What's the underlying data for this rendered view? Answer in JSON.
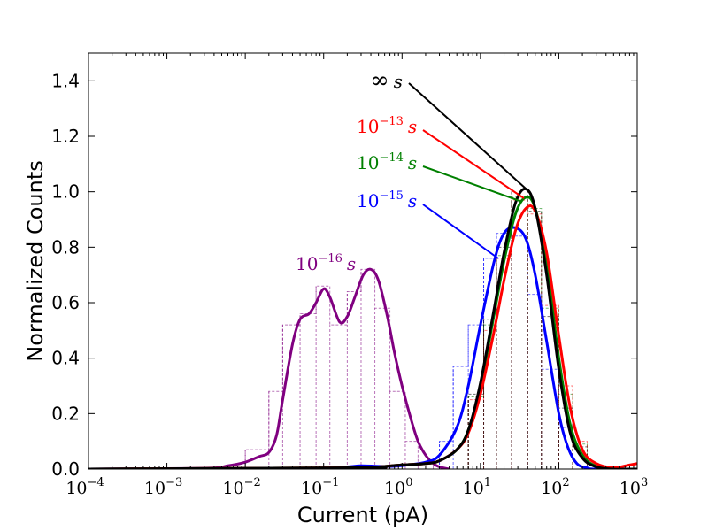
{
  "chart_data": {
    "type": "line",
    "title": "",
    "xlabel": "Current (pA)",
    "ylabel": "Normalized Counts",
    "xscale": "log",
    "xlim": [
      0.0001,
      1000
    ],
    "ylim": [
      0.0,
      1.5
    ],
    "x_ticks": [
      {
        "value": 0.0001,
        "base": "10",
        "exp": "−4"
      },
      {
        "value": 0.001,
        "base": "10",
        "exp": "−3"
      },
      {
        "value": 0.01,
        "base": "10",
        "exp": "−2"
      },
      {
        "value": 0.1,
        "base": "10",
        "exp": "−1"
      },
      {
        "value": 1,
        "base": "10",
        "exp": "0"
      },
      {
        "value": 10,
        "base": "10",
        "exp": "1"
      },
      {
        "value": 100,
        "base": "10",
        "exp": "2"
      },
      {
        "value": 1000,
        "base": "10",
        "exp": "3"
      }
    ],
    "y_ticks": [
      {
        "value": 0.0,
        "label": "0.0"
      },
      {
        "value": 0.2,
        "label": "0.2"
      },
      {
        "value": 0.4,
        "label": "0.4"
      },
      {
        "value": 0.6,
        "label": "0.6"
      },
      {
        "value": 0.8,
        "label": "0.8"
      },
      {
        "value": 1.0,
        "label": "1.0"
      },
      {
        "value": 1.2,
        "label": "1.2"
      },
      {
        "value": 1.4,
        "label": "1.4"
      }
    ],
    "series": [
      {
        "name": "10^-16 s",
        "color": "#800080",
        "annotation": {
          "prefix": "10",
          "exp": "−16",
          "unit": "s"
        },
        "curve": [
          [
            0.0001,
            0.0
          ],
          [
            0.003,
            0.003
          ],
          [
            0.006,
            0.012
          ],
          [
            0.01,
            0.025
          ],
          [
            0.015,
            0.045
          ],
          [
            0.02,
            0.06
          ],
          [
            0.025,
            0.12
          ],
          [
            0.03,
            0.25
          ],
          [
            0.04,
            0.45
          ],
          [
            0.05,
            0.54
          ],
          [
            0.065,
            0.56
          ],
          [
            0.08,
            0.6
          ],
          [
            0.1,
            0.65
          ],
          [
            0.12,
            0.62
          ],
          [
            0.16,
            0.53
          ],
          [
            0.2,
            0.55
          ],
          [
            0.25,
            0.62
          ],
          [
            0.32,
            0.7
          ],
          [
            0.4,
            0.72
          ],
          [
            0.5,
            0.68
          ],
          [
            0.65,
            0.55
          ],
          [
            0.8,
            0.42
          ],
          [
            1.0,
            0.3
          ],
          [
            1.3,
            0.18
          ],
          [
            1.6,
            0.1
          ],
          [
            2.0,
            0.05
          ],
          [
            2.5,
            0.02
          ],
          [
            3.0,
            0.008
          ],
          [
            4.0,
            0.0
          ]
        ],
        "histogram": [
          [
            0.0001,
            0.01,
            0.0
          ],
          [
            0.01,
            0.02,
            0.07
          ],
          [
            0.02,
            0.03,
            0.28
          ],
          [
            0.03,
            0.05,
            0.52
          ],
          [
            0.05,
            0.08,
            0.56
          ],
          [
            0.08,
            0.12,
            0.66
          ],
          [
            0.12,
            0.2,
            0.52
          ],
          [
            0.2,
            0.3,
            0.64
          ],
          [
            0.3,
            0.45,
            0.72
          ],
          [
            0.45,
            0.7,
            0.58
          ],
          [
            0.7,
            1.1,
            0.28
          ],
          [
            1.1,
            1.6,
            0.1
          ],
          [
            1.6,
            2.5,
            0.02
          ],
          [
            2.5,
            1000,
            0.0
          ]
        ]
      },
      {
        "name": "10^-15 s",
        "color": "#0000ff",
        "annotation": {
          "prefix": "10",
          "exp": "−15",
          "unit": "s"
        },
        "curve": [
          [
            0.0001,
            0.0
          ],
          [
            0.1,
            0.003
          ],
          [
            0.2,
            0.008
          ],
          [
            0.3,
            0.012
          ],
          [
            0.5,
            0.01
          ],
          [
            0.8,
            0.01
          ],
          [
            1.2,
            0.015
          ],
          [
            2.0,
            0.025
          ],
          [
            3.0,
            0.05
          ],
          [
            5.0,
            0.15
          ],
          [
            7.0,
            0.3
          ],
          [
            10.0,
            0.52
          ],
          [
            15.0,
            0.75
          ],
          [
            20.0,
            0.85
          ],
          [
            28.0,
            0.87
          ],
          [
            38.0,
            0.83
          ],
          [
            50.0,
            0.7
          ],
          [
            70.0,
            0.46
          ],
          [
            100.0,
            0.2
          ],
          [
            130.0,
            0.08
          ],
          [
            170.0,
            0.02
          ],
          [
            230.0,
            0.004
          ],
          [
            300.0,
            0.0
          ],
          [
            1000,
            0.0
          ]
        ],
        "histogram": [
          [
            3.0,
            4.5,
            0.1
          ],
          [
            4.5,
            7.0,
            0.37
          ],
          [
            7.0,
            11.0,
            0.52
          ],
          [
            11.0,
            16.0,
            0.76
          ],
          [
            16.0,
            25.0,
            0.85
          ],
          [
            25.0,
            40.0,
            0.84
          ],
          [
            40.0,
            60.0,
            0.63
          ],
          [
            60.0,
            100.0,
            0.36
          ],
          [
            100.0,
            150.0,
            0.15
          ],
          [
            150.0,
            230.0,
            0.04
          ]
        ]
      },
      {
        "name": "10^-14 s",
        "color": "#008000",
        "annotation": {
          "prefix": "10",
          "exp": "−14",
          "unit": "s"
        },
        "curve": [
          [
            0.0001,
            0.0
          ],
          [
            0.3,
            0.005
          ],
          [
            0.5,
            0.008
          ],
          [
            1.0,
            0.015
          ],
          [
            2.0,
            0.02
          ],
          [
            3.0,
            0.03
          ],
          [
            5.0,
            0.07
          ],
          [
            7.0,
            0.14
          ],
          [
            10.0,
            0.3
          ],
          [
            15.0,
            0.56
          ],
          [
            20.0,
            0.75
          ],
          [
            28.0,
            0.92
          ],
          [
            38.0,
            0.98
          ],
          [
            50.0,
            0.94
          ],
          [
            70.0,
            0.74
          ],
          [
            100.0,
            0.4
          ],
          [
            140.0,
            0.16
          ],
          [
            200.0,
            0.05
          ],
          [
            300.0,
            0.01
          ],
          [
            500.0,
            0.0
          ],
          [
            1000,
            0.0
          ]
        ],
        "histogram": [
          [
            7.0,
            11.0,
            0.26
          ],
          [
            11.0,
            16.0,
            0.52
          ],
          [
            16.0,
            25.0,
            0.77
          ],
          [
            25.0,
            40.0,
            0.98
          ],
          [
            40.0,
            60.0,
            0.94
          ],
          [
            60.0,
            100.0,
            0.58
          ],
          [
            100.0,
            150.0,
            0.27
          ],
          [
            150.0,
            230.0,
            0.09
          ]
        ]
      },
      {
        "name": "10^-13 s",
        "color": "#ff0000",
        "annotation": {
          "prefix": "10",
          "exp": "−13",
          "unit": "s"
        },
        "curve": [
          [
            0.0001,
            0.0
          ],
          [
            0.3,
            0.005
          ],
          [
            0.5,
            0.008
          ],
          [
            1.0,
            0.015
          ],
          [
            2.0,
            0.02
          ],
          [
            3.0,
            0.03
          ],
          [
            5.0,
            0.07
          ],
          [
            7.0,
            0.13
          ],
          [
            10.0,
            0.27
          ],
          [
            15.0,
            0.5
          ],
          [
            20.0,
            0.68
          ],
          [
            28.0,
            0.86
          ],
          [
            38.0,
            0.94
          ],
          [
            50.0,
            0.93
          ],
          [
            70.0,
            0.78
          ],
          [
            100.0,
            0.48
          ],
          [
            140.0,
            0.22
          ],
          [
            200.0,
            0.07
          ],
          [
            300.0,
            0.02
          ],
          [
            500.0,
            0.005
          ],
          [
            800.0,
            0.015
          ],
          [
            1000,
            0.02
          ]
        ],
        "histogram": [
          [
            7.0,
            11.0,
            0.25
          ],
          [
            11.0,
            16.0,
            0.5
          ],
          [
            16.0,
            25.0,
            0.76
          ],
          [
            25.0,
            40.0,
            0.97
          ],
          [
            40.0,
            60.0,
            0.92
          ],
          [
            60.0,
            100.0,
            0.59
          ],
          [
            100.0,
            150.0,
            0.3
          ],
          [
            150.0,
            230.0,
            0.1
          ]
        ]
      },
      {
        "name": "∞ s",
        "color": "#000000",
        "annotation": {
          "prefix": "∞",
          "exp": "",
          "unit": "s"
        },
        "curve": [
          [
            0.0001,
            0.0
          ],
          [
            0.3,
            0.005
          ],
          [
            0.5,
            0.008
          ],
          [
            1.0,
            0.015
          ],
          [
            2.0,
            0.02
          ],
          [
            3.0,
            0.03
          ],
          [
            5.0,
            0.07
          ],
          [
            7.0,
            0.14
          ],
          [
            10.0,
            0.31
          ],
          [
            15.0,
            0.58
          ],
          [
            20.0,
            0.78
          ],
          [
            28.0,
            0.96
          ],
          [
            38.0,
            1.01
          ],
          [
            50.0,
            0.94
          ],
          [
            70.0,
            0.7
          ],
          [
            100.0,
            0.36
          ],
          [
            140.0,
            0.13
          ],
          [
            200.0,
            0.04
          ],
          [
            300.0,
            0.008
          ],
          [
            500.0,
            0.0
          ],
          [
            1000,
            0.0
          ]
        ],
        "histogram": [
          [
            7.0,
            11.0,
            0.27
          ],
          [
            11.0,
            16.0,
            0.54
          ],
          [
            16.0,
            25.0,
            0.8
          ],
          [
            25.0,
            40.0,
            1.01
          ],
          [
            40.0,
            60.0,
            0.93
          ],
          [
            60.0,
            100.0,
            0.55
          ],
          [
            100.0,
            150.0,
            0.22
          ],
          [
            150.0,
            230.0,
            0.08
          ]
        ]
      }
    ]
  }
}
